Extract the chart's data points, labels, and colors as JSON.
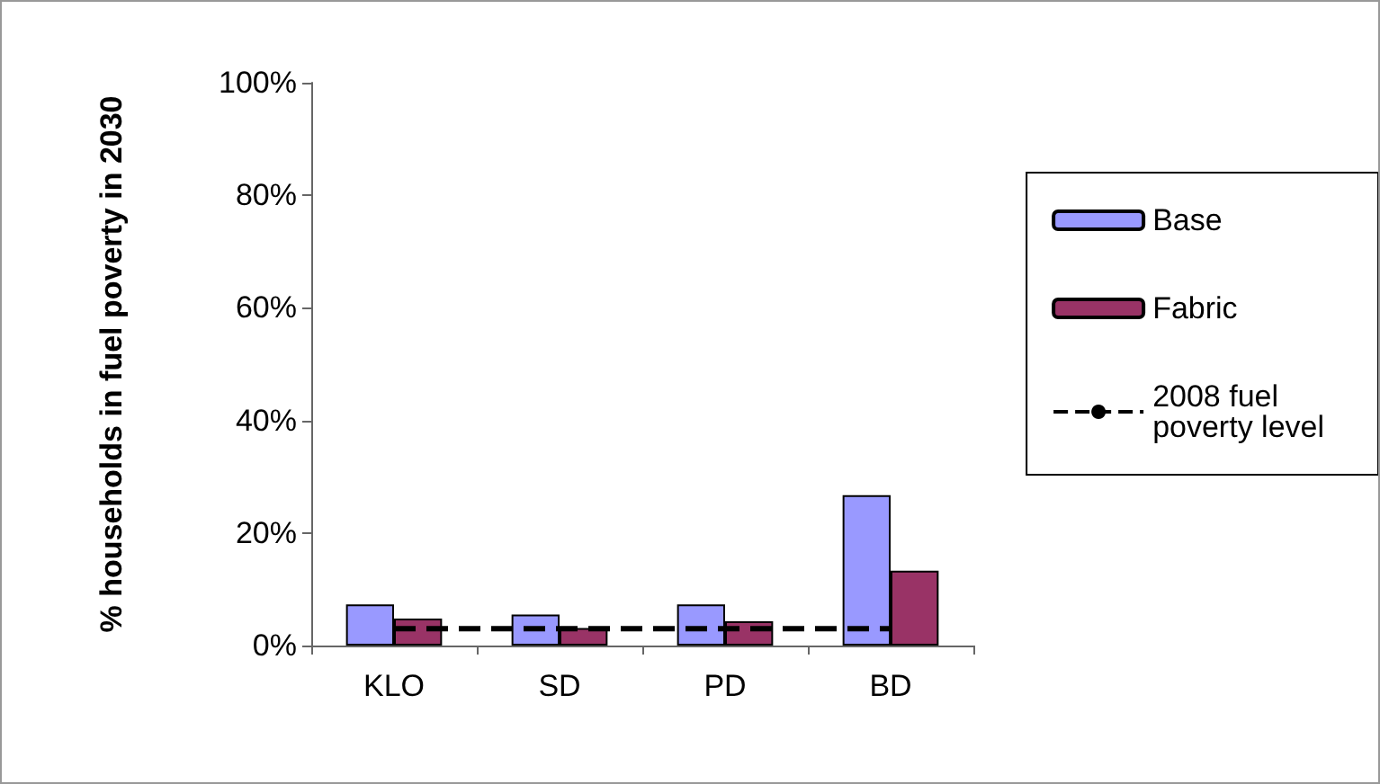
{
  "chart_data": {
    "type": "bar",
    "ylabel": "% households in fuel poverty in 2030",
    "categories": [
      "KLO",
      "SD",
      "PD",
      "BD"
    ],
    "series": [
      {
        "name": "Base",
        "color": "#9999ff",
        "values": [
          7.3,
          5.5,
          7.3,
          26.7
        ]
      },
      {
        "name": "Fabric",
        "color": "#993366",
        "values": [
          4.8,
          3.1,
          4.3,
          13.3
        ]
      },
      {
        "name": "2008 fuel poverty level",
        "type": "line",
        "color": "#000000",
        "line_style": "dashed",
        "marker": "none",
        "values": [
          3,
          3,
          3,
          3
        ]
      }
    ],
    "ylim": [
      0,
      100
    ],
    "yticks": [
      {
        "value": 0,
        "label": "0%"
      },
      {
        "value": 20,
        "label": "20%"
      },
      {
        "value": 40,
        "label": "40%"
      },
      {
        "value": 60,
        "label": "60%"
      },
      {
        "value": 80,
        "label": "80%"
      },
      {
        "value": 100,
        "label": "100%"
      }
    ],
    "grid": false,
    "legend": "right"
  }
}
